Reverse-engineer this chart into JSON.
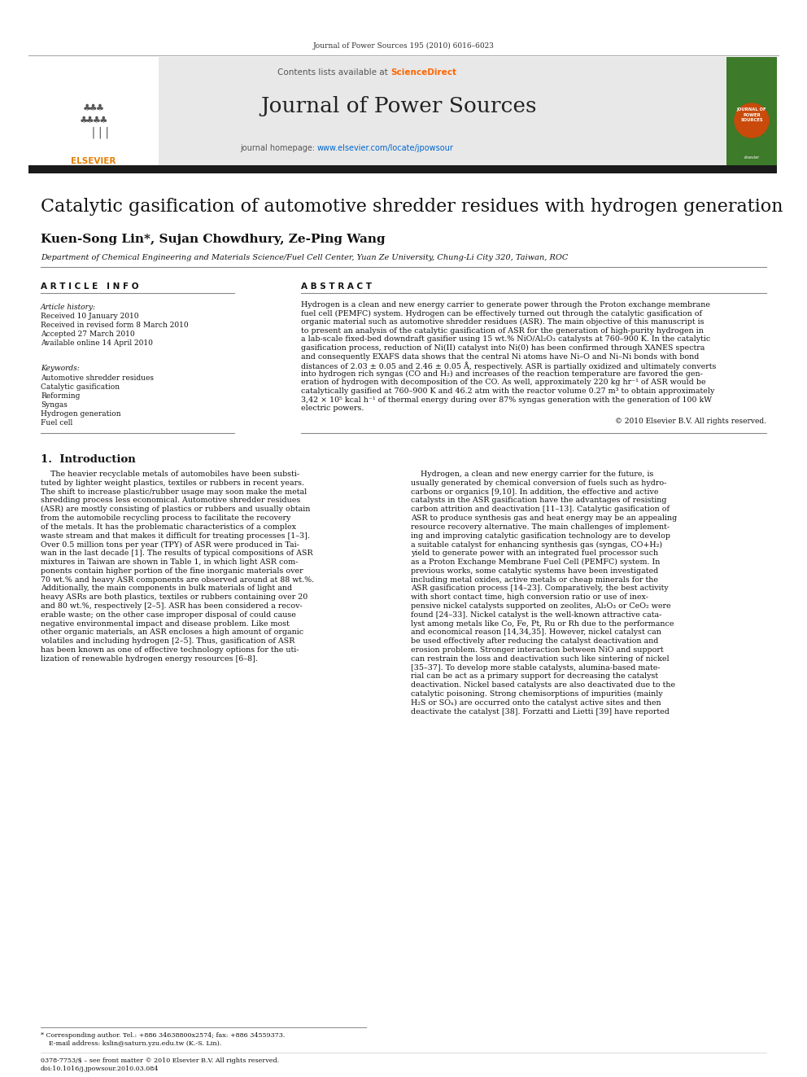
{
  "journal_header": "Journal of Power Sources 195 (2010) 6016–6023",
  "contents_text": "Contents lists available at ScienceDirect",
  "journal_name": "Journal of Power Sources",
  "homepage_text": "journal homepage: www.elsevier.com/locate/jpowsour",
  "paper_title": "Catalytic gasification of automotive shredder residues with hydrogen generation",
  "authors": "Kuen-Song Lin*, Sujan Chowdhury, Ze-Ping Wang",
  "affiliation": "Department of Chemical Engineering and Materials Science/Fuel Cell Center, Yuan Ze University, Chung-Li City 320, Taiwan, ROC",
  "article_info_header": "A R T I C L E   I N F O",
  "abstract_header": "A B S T R A C T",
  "article_history_label": "Article history:",
  "received": "Received 10 January 2010",
  "received_revised": "Received in revised form 8 March 2010",
  "accepted": "Accepted 27 March 2010",
  "available_online": "Available online 14 April 2010",
  "keywords_label": "Keywords:",
  "keywords": [
    "Automotive shredder residues",
    "Catalytic gasification",
    "Reforming",
    "Syngas",
    "Hydrogen generation",
    "Fuel cell"
  ],
  "copyright": "© 2010 Elsevier B.V. All rights reserved.",
  "intro_header": "1.  Introduction",
  "bg_color": "#ffffff",
  "black_bar_color": "#1a1a1a",
  "elsevier_text_color": "#e67e00",
  "sciencedirect_color": "#FF6600",
  "link_color": "#0066cc",
  "gray_header_bg": "#e8e8e8"
}
